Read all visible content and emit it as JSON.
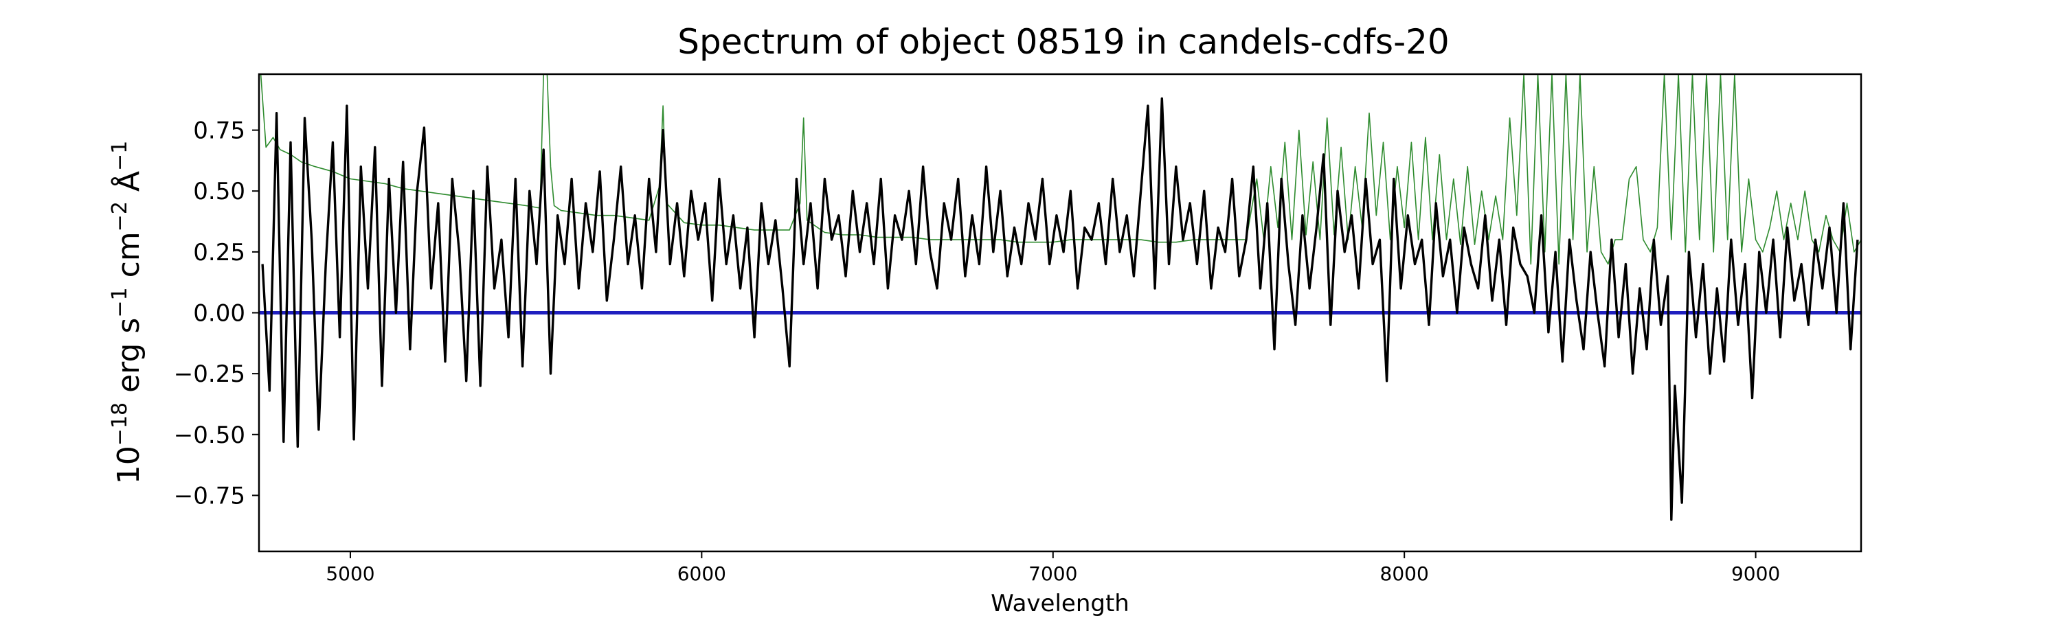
{
  "chart_data": {
    "type": "line",
    "title": "Spectrum of object 08519 in candels-cdfs-20",
    "xlabel": "Wavelength",
    "ylabel_parts": {
      "base": "10",
      "exp": "−18",
      "erg": " erg s",
      "s_exp": "−1",
      "cm": " cm",
      "cm_exp": "−2",
      "ang": " Å",
      "ang_exp": "−1"
    },
    "xlim": [
      4740,
      9300
    ],
    "ylim": [
      -0.98,
      0.98
    ],
    "xticks": [
      5000,
      6000,
      7000,
      8000,
      9000
    ],
    "xtick_labels": [
      "5000",
      "6000",
      "7000",
      "8000",
      "9000"
    ],
    "yticks": [
      0.75,
      0.5,
      0.25,
      0.0,
      -0.25,
      -0.5,
      -0.75
    ],
    "ytick_labels": [
      "0.75",
      "0.50",
      "0.25",
      "0.00",
      "−0.25",
      "−0.50",
      "−0.75"
    ],
    "grid": false,
    "series": [
      {
        "role": "flux",
        "color": "#000000",
        "x": [
          4750,
          4770,
          4790,
          4810,
          4830,
          4850,
          4870,
          4890,
          4910,
          4930,
          4950,
          4970,
          4990,
          5010,
          5030,
          5050,
          5070,
          5090,
          5110,
          5130,
          5150,
          5170,
          5190,
          5210,
          5230,
          5250,
          5270,
          5290,
          5310,
          5330,
          5350,
          5370,
          5390,
          5410,
          5430,
          5450,
          5470,
          5490,
          5510,
          5530,
          5550,
          5570,
          5590,
          5610,
          5630,
          5650,
          5670,
          5690,
          5710,
          5730,
          5750,
          5770,
          5790,
          5810,
          5830,
          5850,
          5870,
          5890,
          5910,
          5930,
          5950,
          5970,
          5990,
          6010,
          6030,
          6050,
          6070,
          6090,
          6110,
          6130,
          6150,
          6170,
          6190,
          6210,
          6230,
          6250,
          6270,
          6290,
          6310,
          6330,
          6350,
          6370,
          6390,
          6410,
          6430,
          6450,
          6470,
          6490,
          6510,
          6530,
          6550,
          6570,
          6590,
          6610,
          6630,
          6650,
          6670,
          6690,
          6710,
          6730,
          6750,
          6770,
          6790,
          6810,
          6830,
          6850,
          6870,
          6890,
          6910,
          6930,
          6950,
          6970,
          6990,
          7010,
          7030,
          7050,
          7070,
          7090,
          7110,
          7130,
          7150,
          7170,
          7190,
          7210,
          7230,
          7250,
          7270,
          7290,
          7310,
          7330,
          7350,
          7370,
          7390,
          7410,
          7430,
          7450,
          7470,
          7490,
          7510,
          7530,
          7550,
          7570,
          7590,
          7610,
          7630,
          7650,
          7670,
          7690,
          7710,
          7730,
          7750,
          7770,
          7790,
          7810,
          7830,
          7850,
          7870,
          7890,
          7910,
          7930,
          7950,
          7970,
          7990,
          8010,
          8030,
          8050,
          8070,
          8090,
          8110,
          8130,
          8150,
          8170,
          8190,
          8210,
          8230,
          8250,
          8270,
          8290,
          8310,
          8330,
          8350,
          8370,
          8390,
          8410,
          8430,
          8450,
          8470,
          8490,
          8510,
          8530,
          8550,
          8570,
          8590,
          8610,
          8630,
          8650,
          8670,
          8690,
          8710,
          8730,
          8750,
          8760,
          8770,
          8790,
          8810,
          8830,
          8850,
          8870,
          8890,
          8910,
          8930,
          8950,
          8970,
          8990,
          9010,
          9030,
          9050,
          9070,
          9090,
          9110,
          9130,
          9150,
          9170,
          9190,
          9210,
          9230,
          9250,
          9270,
          9290
        ],
        "y": [
          0.2,
          -0.32,
          0.82,
          -0.53,
          0.7,
          -0.55,
          0.8,
          0.3,
          -0.48,
          0.2,
          0.7,
          -0.1,
          0.85,
          -0.52,
          0.6,
          0.1,
          0.68,
          -0.3,
          0.55,
          0.0,
          0.62,
          -0.15,
          0.5,
          0.76,
          0.1,
          0.45,
          -0.2,
          0.55,
          0.25,
          -0.28,
          0.5,
          -0.3,
          0.6,
          0.1,
          0.3,
          -0.1,
          0.55,
          -0.22,
          0.5,
          0.2,
          0.67,
          -0.25,
          0.4,
          0.2,
          0.55,
          0.1,
          0.45,
          0.25,
          0.58,
          0.05,
          0.3,
          0.6,
          0.2,
          0.4,
          0.1,
          0.55,
          0.25,
          0.75,
          0.2,
          0.45,
          0.15,
          0.5,
          0.3,
          0.45,
          0.05,
          0.55,
          0.2,
          0.4,
          0.1,
          0.35,
          -0.1,
          0.45,
          0.2,
          0.38,
          0.1,
          -0.22,
          0.55,
          0.2,
          0.45,
          0.1,
          0.55,
          0.3,
          0.4,
          0.15,
          0.5,
          0.25,
          0.45,
          0.2,
          0.55,
          0.1,
          0.4,
          0.3,
          0.5,
          0.2,
          0.6,
          0.25,
          0.1,
          0.45,
          0.3,
          0.55,
          0.15,
          0.4,
          0.2,
          0.6,
          0.25,
          0.5,
          0.15,
          0.35,
          0.2,
          0.45,
          0.3,
          0.55,
          0.2,
          0.4,
          0.25,
          0.5,
          0.1,
          0.35,
          0.3,
          0.45,
          0.2,
          0.55,
          0.25,
          0.4,
          0.15,
          0.5,
          0.85,
          0.1,
          0.88,
          0.2,
          0.6,
          0.3,
          0.45,
          0.2,
          0.5,
          0.1,
          0.35,
          0.25,
          0.55,
          0.15,
          0.3,
          0.6,
          0.1,
          0.45,
          -0.15,
          0.55,
          0.2,
          -0.05,
          0.4,
          0.1,
          0.35,
          0.65,
          -0.05,
          0.5,
          0.25,
          0.4,
          0.1,
          0.55,
          0.2,
          0.3,
          -0.28,
          0.55,
          0.1,
          0.4,
          0.2,
          0.3,
          -0.05,
          0.45,
          0.15,
          0.3,
          0.0,
          0.35,
          0.2,
          0.1,
          0.4,
          0.05,
          0.3,
          -0.05,
          0.35,
          0.2,
          0.15,
          0.0,
          0.4,
          -0.08,
          0.25,
          -0.2,
          0.3,
          0.05,
          -0.15,
          0.25,
          0.0,
          -0.22,
          0.3,
          -0.1,
          0.2,
          -0.25,
          0.1,
          -0.15,
          0.3,
          -0.05,
          0.15,
          -0.85,
          -0.3,
          -0.78,
          0.25,
          -0.1,
          0.2,
          -0.25,
          0.1,
          -0.2,
          0.3,
          -0.05,
          0.2,
          -0.35,
          0.25,
          0.0,
          0.3,
          -0.1,
          0.35,
          0.05,
          0.2,
          -0.05,
          0.3,
          0.1,
          0.35,
          0.0,
          0.45,
          -0.15,
          0.3
        ]
      },
      {
        "role": "error",
        "color": "#2e8b2e",
        "x": [
          4745,
          4760,
          4780,
          4800,
          4830,
          4860,
          4900,
          4950,
          5000,
          5050,
          5100,
          5150,
          5200,
          5250,
          5300,
          5350,
          5400,
          5450,
          5500,
          5540,
          5550,
          5560,
          5570,
          5580,
          5600,
          5650,
          5700,
          5750,
          5800,
          5850,
          5880,
          5890,
          5900,
          5950,
          6000,
          6050,
          6100,
          6150,
          6200,
          6250,
          6280,
          6290,
          6300,
          6350,
          6400,
          6450,
          6500,
          6550,
          6600,
          6650,
          6700,
          6750,
          6800,
          6850,
          6900,
          6950,
          7000,
          7050,
          7100,
          7150,
          7200,
          7250,
          7300,
          7350,
          7400,
          7450,
          7500,
          7550,
          7580,
          7600,
          7620,
          7640,
          7660,
          7680,
          7700,
          7720,
          7740,
          7760,
          7780,
          7800,
          7820,
          7840,
          7860,
          7880,
          7900,
          7920,
          7940,
          7960,
          7980,
          8000,
          8020,
          8040,
          8060,
          8080,
          8100,
          8120,
          8140,
          8160,
          8180,
          8200,
          8220,
          8240,
          8260,
          8280,
          8300,
          8320,
          8340,
          8360,
          8380,
          8400,
          8420,
          8440,
          8460,
          8480,
          8500,
          8520,
          8540,
          8560,
          8580,
          8600,
          8620,
          8640,
          8660,
          8680,
          8700,
          8720,
          8740,
          8760,
          8780,
          8800,
          8820,
          8840,
          8860,
          8880,
          8900,
          8920,
          8940,
          8960,
          8980,
          9000,
          9020,
          9040,
          9060,
          9080,
          9100,
          9120,
          9140,
          9160,
          9180,
          9200,
          9220,
          9240,
          9260,
          9280,
          9300
        ],
        "y": [
          0.98,
          0.68,
          0.72,
          0.67,
          0.65,
          0.62,
          0.6,
          0.58,
          0.55,
          0.54,
          0.53,
          0.51,
          0.5,
          0.49,
          0.48,
          0.47,
          0.46,
          0.45,
          0.44,
          0.43,
          0.98,
          0.98,
          0.6,
          0.44,
          0.42,
          0.41,
          0.4,
          0.4,
          0.39,
          0.38,
          0.52,
          0.85,
          0.45,
          0.37,
          0.36,
          0.36,
          0.35,
          0.34,
          0.34,
          0.34,
          0.45,
          0.8,
          0.38,
          0.33,
          0.32,
          0.32,
          0.31,
          0.31,
          0.31,
          0.3,
          0.3,
          0.3,
          0.3,
          0.3,
          0.29,
          0.29,
          0.29,
          0.3,
          0.3,
          0.3,
          0.3,
          0.3,
          0.29,
          0.29,
          0.3,
          0.3,
          0.3,
          0.3,
          0.55,
          0.3,
          0.6,
          0.35,
          0.7,
          0.3,
          0.75,
          0.32,
          0.62,
          0.3,
          0.8,
          0.32,
          0.68,
          0.3,
          0.6,
          0.35,
          0.82,
          0.4,
          0.7,
          0.3,
          0.6,
          0.35,
          0.7,
          0.3,
          0.72,
          0.3,
          0.65,
          0.3,
          0.55,
          0.28,
          0.6,
          0.28,
          0.5,
          0.3,
          0.48,
          0.3,
          0.8,
          0.4,
          0.98,
          0.2,
          0.98,
          0.25,
          0.98,
          0.2,
          0.98,
          0.3,
          0.98,
          0.25,
          0.6,
          0.25,
          0.2,
          0.3,
          0.3,
          0.55,
          0.6,
          0.3,
          0.25,
          0.35,
          0.98,
          0.3,
          0.98,
          0.25,
          0.98,
          0.3,
          0.98,
          0.25,
          0.98,
          0.3,
          0.98,
          0.25,
          0.55,
          0.3,
          0.25,
          0.35,
          0.5,
          0.3,
          0.45,
          0.3,
          0.5,
          0.3,
          0.25,
          0.4,
          0.3,
          0.25,
          0.45,
          0.25,
          0.3
        ]
      },
      {
        "role": "zero",
        "color": "#1f1fbf",
        "x": [
          4740,
          9300
        ],
        "y": [
          0.0,
          0.0
        ]
      }
    ]
  }
}
